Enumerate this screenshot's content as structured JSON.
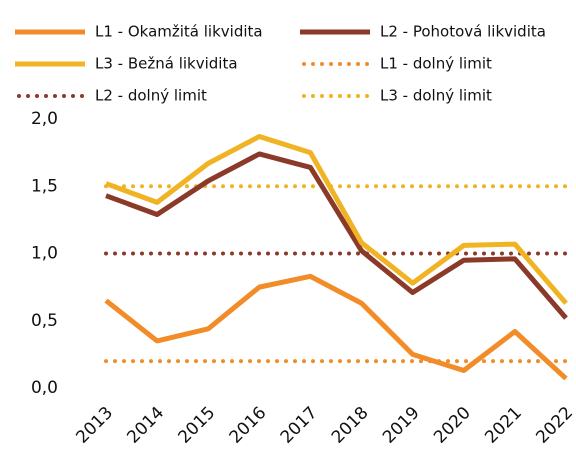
{
  "chart_data": {
    "type": "line",
    "categories": [
      "2013",
      "2014",
      "2015",
      "2016",
      "2017",
      "2018",
      "2019",
      "2020",
      "2021",
      "2022"
    ],
    "series": [
      {
        "name": "L1 - Okamžitá likvidita",
        "color": "#f28c28",
        "style": "solid",
        "values": [
          0.65,
          0.35,
          0.44,
          0.75,
          0.83,
          0.63,
          0.25,
          0.13,
          0.42,
          0.07
        ]
      },
      {
        "name": "L2 - Pohotová likvidita",
        "color": "#8b3a2a",
        "style": "solid",
        "values": [
          1.43,
          1.29,
          1.54,
          1.74,
          1.64,
          1.02,
          0.71,
          0.95,
          0.96,
          0.52
        ]
      },
      {
        "name": "L3 - Bežná likvidita",
        "color": "#f0b323",
        "style": "solid",
        "values": [
          1.52,
          1.38,
          1.67,
          1.87,
          1.75,
          1.08,
          0.78,
          1.06,
          1.07,
          0.63
        ]
      },
      {
        "name": "L1 - dolný limit",
        "color": "#f28c28",
        "style": "dotted",
        "values": [
          0.2,
          0.2,
          0.2,
          0.2,
          0.2,
          0.2,
          0.2,
          0.2,
          0.2,
          0.2
        ]
      },
      {
        "name": "L2 - dolný limit",
        "color": "#8b3a2a",
        "style": "dotted",
        "values": [
          1,
          1,
          1,
          1,
          1,
          1,
          1,
          1,
          1,
          1
        ]
      },
      {
        "name": "L3 - dolný limit",
        "color": "#f0b323",
        "style": "dotted",
        "values": [
          1.5,
          1.5,
          1.5,
          1.5,
          1.5,
          1.5,
          1.5,
          1.5,
          1.5,
          1.5
        ]
      }
    ],
    "ylim": [
      0,
      2
    ],
    "yticks": [
      {
        "value": 0,
        "label": "0,0"
      },
      {
        "value": 0.5,
        "label": "0,5"
      },
      {
        "value": 1,
        "label": "1,0"
      },
      {
        "value": 1.5,
        "label": "1,5"
      },
      {
        "value": 2,
        "label": "2,0"
      }
    ],
    "grid": false
  }
}
